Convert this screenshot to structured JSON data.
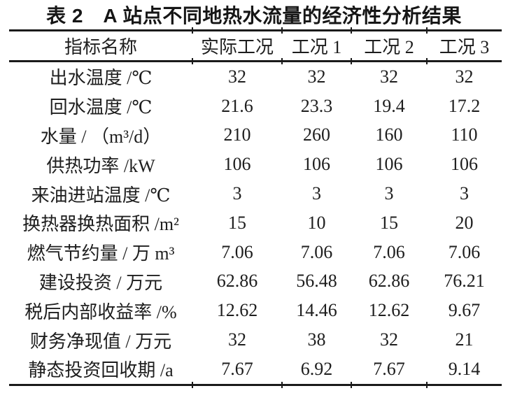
{
  "title": "表 2　A 站点不同地热水流量的经济性分析结果",
  "colors": {
    "ink": "#1e1e1e",
    "rule": "#1a1a1a",
    "background": "#ffffff"
  },
  "table": {
    "headers": [
      "指标名称",
      "实际工况",
      "工况 1",
      "工况 2",
      "工况 3"
    ],
    "rows": [
      {
        "label": "出水温度 /℃",
        "values": [
          "32",
          "32",
          "32",
          "32"
        ]
      },
      {
        "label": "回水温度 /℃",
        "values": [
          "21.6",
          "23.3",
          "19.4",
          "17.2"
        ]
      },
      {
        "label": "水量 / （m³/d）",
        "values": [
          "210",
          "260",
          "160",
          "110"
        ]
      },
      {
        "label": "供热功率 /kW",
        "values": [
          "106",
          "106",
          "106",
          "106"
        ]
      },
      {
        "label": "来油进站温度 /℃",
        "values": [
          "3",
          "3",
          "3",
          "3"
        ]
      },
      {
        "label": "换热器换热面积 /m²",
        "values": [
          "15",
          "10",
          "15",
          "20"
        ]
      },
      {
        "label": "燃气节约量 / 万 m³",
        "values": [
          "7.06",
          "7.06",
          "7.06",
          "7.06"
        ]
      },
      {
        "label": "建设投资 / 万元",
        "values": [
          "62.86",
          "56.48",
          "62.86",
          "76.21"
        ]
      },
      {
        "label": "税后内部收益率 /%",
        "values": [
          "12.62",
          "14.46",
          "12.62",
          "9.67"
        ]
      },
      {
        "label": "财务净现值 / 万元",
        "values": [
          "32",
          "38",
          "32",
          "21"
        ]
      },
      {
        "label": "静态投资回收期 /a",
        "values": [
          "7.67",
          "6.92",
          "7.67",
          "9.14"
        ]
      }
    ]
  }
}
